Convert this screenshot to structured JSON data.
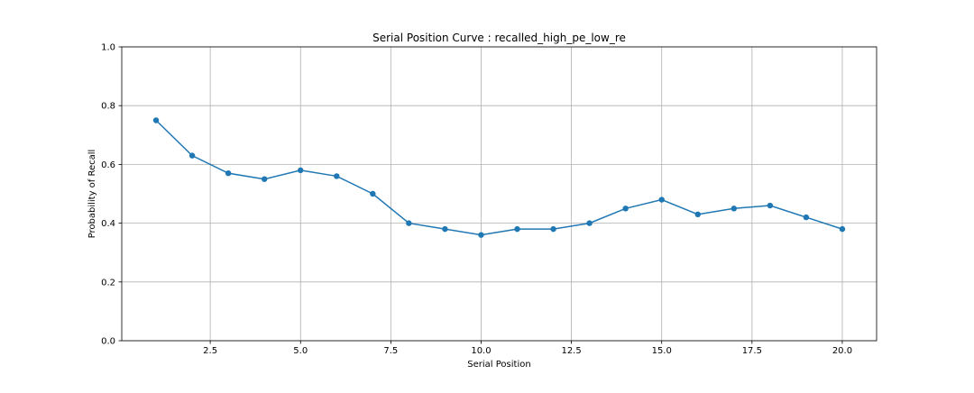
{
  "chart_data": {
    "type": "line",
    "title": "Serial Position Curve : recalled_high_pe_low_re",
    "xlabel": "Serial Position",
    "ylabel": "Probability of Recall",
    "xlim": [
      0.05,
      20.95
    ],
    "ylim": [
      0.0,
      1.0
    ],
    "xticks": [
      2.5,
      5.0,
      7.5,
      10.0,
      12.5,
      15.0,
      17.5,
      20.0
    ],
    "xtick_labels": [
      "2.5",
      "5.0",
      "7.5",
      "10.0",
      "12.5",
      "15.0",
      "17.5",
      "20.0"
    ],
    "yticks": [
      0.0,
      0.2,
      0.4,
      0.6,
      0.8,
      1.0
    ],
    "ytick_labels": [
      "0.0",
      "0.2",
      "0.4",
      "0.6",
      "0.8",
      "1.0"
    ],
    "grid": true,
    "legend": false,
    "series": [
      {
        "color": "#1f77b4",
        "marker": "circle",
        "x": [
          1,
          2,
          3,
          4,
          5,
          6,
          7,
          8,
          9,
          10,
          11,
          12,
          13,
          14,
          15,
          16,
          17,
          18,
          19,
          20
        ],
        "y": [
          0.75,
          0.63,
          0.57,
          0.55,
          0.58,
          0.56,
          0.5,
          0.4,
          0.38,
          0.36,
          0.38,
          0.38,
          0.4,
          0.45,
          0.48,
          0.43,
          0.45,
          0.46,
          0.42,
          0.38
        ]
      }
    ]
  }
}
